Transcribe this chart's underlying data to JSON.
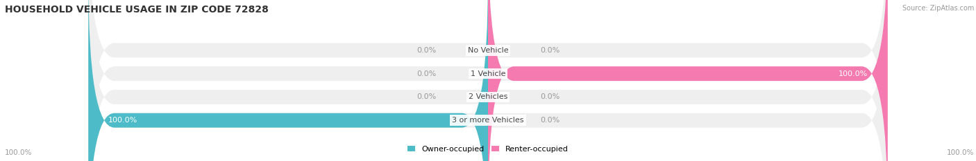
{
  "title": "HOUSEHOLD VEHICLE USAGE IN ZIP CODE 72828",
  "source": "Source: ZipAtlas.com",
  "categories": [
    "No Vehicle",
    "1 Vehicle",
    "2 Vehicles",
    "3 or more Vehicles"
  ],
  "owner_values": [
    0.0,
    0.0,
    0.0,
    100.0
  ],
  "renter_values": [
    0.0,
    100.0,
    0.0,
    0.0
  ],
  "owner_color": "#4dbcc8",
  "renter_color": "#f47ab0",
  "bar_bg_color": "#efefef",
  "owner_label": "Owner-occupied",
  "renter_label": "Renter-occupied",
  "title_fontsize": 10,
  "label_fontsize": 8,
  "cat_fontsize": 8,
  "figsize": [
    14.06,
    2.33
  ],
  "dpi": 100,
  "max_value": 100.0
}
